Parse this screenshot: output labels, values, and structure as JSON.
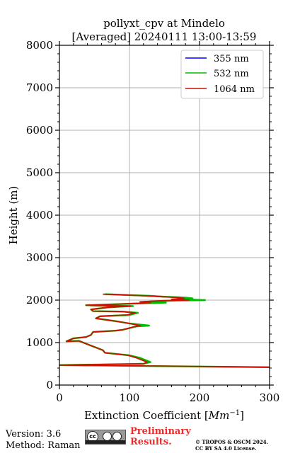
{
  "chart_data": {
    "type": "line",
    "title_line1": "pollyxt_cpv at Mindelo",
    "title_line2": "[Averaged] 20240111 13:00-13:59",
    "xlabel_prefix": "Extinction Coefficient [",
    "xlabel_unit": "Mm",
    "xlabel_exp": "−1",
    "xlabel_suffix": "]",
    "ylabel": "Height (m)",
    "xlim": [
      0,
      300
    ],
    "ylim": [
      0,
      8000
    ],
    "xticks": [
      "0",
      "100",
      "200",
      "300"
    ],
    "yticks": [
      "0",
      "1000",
      "2000",
      "3000",
      "4000",
      "5000",
      "6000",
      "7000",
      "8000"
    ],
    "grid": true,
    "legend_position": "top-right",
    "series": [
      {
        "name": "355 nm",
        "color": "#0000ff",
        "x": [],
        "y": []
      },
      {
        "name": "532 nm",
        "color": "#00bb00",
        "x": [
          300,
          0,
          120,
          130,
          115,
          100,
          65,
          62,
          40,
          28,
          10,
          20,
          38,
          45,
          48,
          80,
          90,
          110,
          128,
          100,
          82,
          52,
          58,
          100,
          112,
          90,
          48,
          45,
          70,
          105,
          55,
          38,
          75,
          152,
          120,
          168,
          208,
          170,
          190,
          180,
          150,
          130,
          65
        ],
        "y": [
          420,
          470,
          500,
          540,
          640,
          700,
          760,
          820,
          960,
          1040,
          1030,
          1100,
          1130,
          1180,
          1250,
          1280,
          1300,
          1380,
          1400,
          1450,
          1500,
          1570,
          1620,
          1650,
          1700,
          1730,
          1740,
          1780,
          1830,
          1860,
          1870,
          1880,
          1900,
          1940,
          1960,
          1990,
          2000,
          2020,
          2040,
          2060,
          2080,
          2100,
          2140
        ]
      },
      {
        "name": "1064 nm",
        "color": "#cc1100",
        "x": [
          300,
          0,
          120,
          125,
          110,
          98,
          65,
          62,
          40,
          28,
          10,
          20,
          38,
          45,
          48,
          80,
          90,
          108,
          115,
          100,
          82,
          52,
          58,
          96,
          108,
          90,
          48,
          45,
          70,
          102,
          55,
          38,
          75,
          130,
          115,
          150,
          185,
          160,
          178,
          170,
          145,
          125,
          62
        ],
        "y": [
          420,
          470,
          500,
          540,
          640,
          700,
          760,
          820,
          960,
          1040,
          1030,
          1100,
          1130,
          1180,
          1250,
          1280,
          1300,
          1380,
          1400,
          1450,
          1500,
          1570,
          1620,
          1650,
          1700,
          1730,
          1740,
          1780,
          1830,
          1860,
          1870,
          1880,
          1900,
          1940,
          1960,
          1990,
          2000,
          2020,
          2040,
          2060,
          2080,
          2100,
          2140
        ]
      }
    ]
  },
  "footer": {
    "version": "Version: 3.6",
    "method": "Method: Raman",
    "license_badge": "cc",
    "preliminary_line1": "Preliminary",
    "preliminary_line2": "Results.",
    "copyright_line1": "© TROPOS & OSCM 2024.",
    "copyright_line2": "CC BY SA 4.0 License.",
    "preliminary_color": "#ee2a2a"
  }
}
